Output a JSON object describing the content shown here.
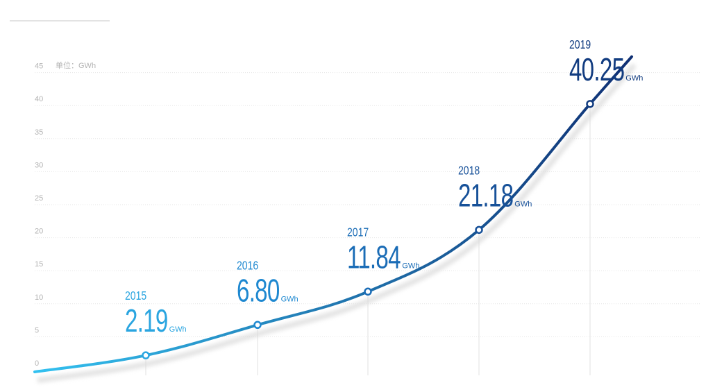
{
  "chart_data": {
    "type": "line",
    "unit_label": "单位：GWh",
    "y_ticks": [
      "0",
      "5",
      "10",
      "15",
      "20",
      "25",
      "30",
      "35",
      "40",
      "45"
    ],
    "ylim": [
      0,
      45
    ],
    "grid": true,
    "points": [
      {
        "year": "2015",
        "value": 2.19,
        "value_label": "2.19",
        "unit": "GWh",
        "color": "#2aa5e0"
      },
      {
        "year": "2016",
        "value": 6.8,
        "value_label": "6.80",
        "unit": "GWh",
        "color": "#1e88d0"
      },
      {
        "year": "2017",
        "value": 11.84,
        "value_label": "11.84",
        "unit": "GWh",
        "color": "#1a6cb6"
      },
      {
        "year": "2018",
        "value": 21.18,
        "value_label": "21.18",
        "unit": "GWh",
        "color": "#175199"
      },
      {
        "year": "2019",
        "value": 40.25,
        "value_label": "40.25",
        "unit": "GWh",
        "color": "#123c80"
      }
    ],
    "line_colors": {
      "start": "#33c1f0",
      "end": "#0f2f73"
    }
  }
}
